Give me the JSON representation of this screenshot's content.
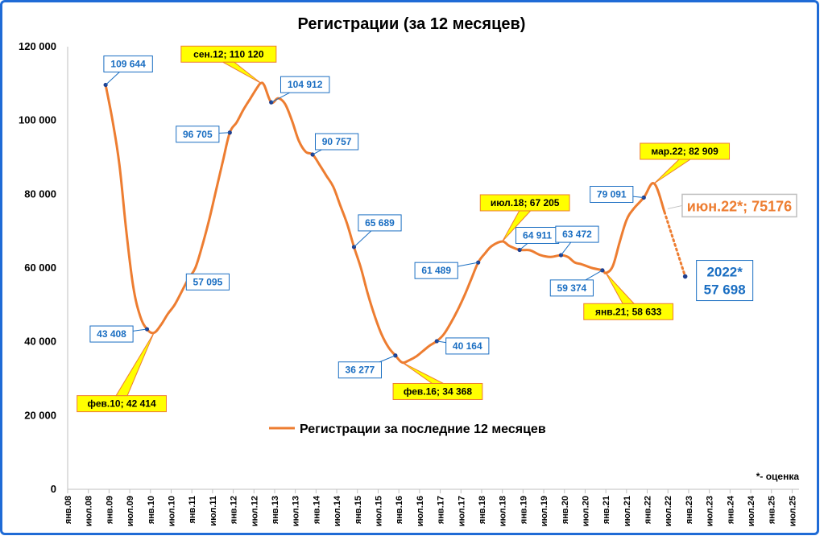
{
  "chart_data": {
    "type": "line",
    "title": "Регистрации (за 12 месяцев)",
    "ylim": [
      0,
      120000
    ],
    "xlim": [
      "2008-01",
      "2025-09"
    ],
    "yticks": [
      "0",
      "20 000",
      "40 000",
      "60 000",
      "80 000",
      "100 000",
      "120 000"
    ],
    "ytick_values": [
      0,
      20000,
      40000,
      60000,
      80000,
      100000,
      120000
    ],
    "xticks": [
      "янв.08",
      "июл.08",
      "янв.09",
      "июл.09",
      "янв.10",
      "июл.10",
      "янв.11",
      "июл.11",
      "янв.12",
      "июл.12",
      "янв.13",
      "июл.13",
      "янв.14",
      "июл.14",
      "янв.15",
      "июл.15",
      "янв.16",
      "июл.16",
      "янв.17",
      "июл.17",
      "янв.18",
      "июл.18",
      "янв.19",
      "июл.19",
      "янв.20",
      "июл.20",
      "янв.21",
      "июл.21",
      "янв.22",
      "июл.22",
      "янв.23",
      "июл.23",
      "янв.24",
      "июл.24",
      "янв.25",
      "июл.25"
    ],
    "xtick_dates": [
      "2008-01",
      "2008-07",
      "2009-01",
      "2009-07",
      "2010-01",
      "2010-07",
      "2011-01",
      "2011-07",
      "2012-01",
      "2012-07",
      "2013-01",
      "2013-07",
      "2014-01",
      "2014-07",
      "2015-01",
      "2015-07",
      "2016-01",
      "2016-07",
      "2017-01",
      "2017-07",
      "2018-01",
      "2018-07",
      "2019-01",
      "2019-07",
      "2020-01",
      "2020-07",
      "2021-01",
      "2021-07",
      "2022-01",
      "2022-07",
      "2023-01",
      "2023-07",
      "2024-01",
      "2024-07",
      "2025-01",
      "2025-07"
    ],
    "grid": false,
    "legend_position": "center",
    "series": [
      {
        "name": "Регистрации за последние 12 месяцев",
        "color": "#ed7d31",
        "points": [
          [
            "2008-12",
            109644
          ],
          [
            "2009-02",
            100000
          ],
          [
            "2009-04",
            88000
          ],
          [
            "2009-06",
            70000
          ],
          [
            "2009-08",
            55000
          ],
          [
            "2009-10",
            47000
          ],
          [
            "2009-12",
            43408
          ],
          [
            "2010-02",
            42414
          ],
          [
            "2010-04",
            44500
          ],
          [
            "2010-06",
            47500
          ],
          [
            "2010-08",
            50000
          ],
          [
            "2010-10",
            53500
          ],
          [
            "2010-12",
            57095
          ],
          [
            "2011-02",
            60000
          ],
          [
            "2011-04",
            66000
          ],
          [
            "2011-06",
            73000
          ],
          [
            "2011-08",
            81000
          ],
          [
            "2011-10",
            89000
          ],
          [
            "2011-12",
            96705
          ],
          [
            "2012-02",
            99500
          ],
          [
            "2012-04",
            103000
          ],
          [
            "2012-06",
            106000
          ],
          [
            "2012-08",
            109000
          ],
          [
            "2012-09",
            110120
          ],
          [
            "2012-10",
            109500
          ],
          [
            "2012-12",
            104912
          ],
          [
            "2013-02",
            106000
          ],
          [
            "2013-04",
            104500
          ],
          [
            "2013-06",
            100000
          ],
          [
            "2013-08",
            94500
          ],
          [
            "2013-10",
            91500
          ],
          [
            "2013-12",
            90757
          ],
          [
            "2014-02",
            88000
          ],
          [
            "2014-04",
            85000
          ],
          [
            "2014-06",
            82000
          ],
          [
            "2014-08",
            77000
          ],
          [
            "2014-10",
            72000
          ],
          [
            "2014-12",
            65689
          ],
          [
            "2015-02",
            60000
          ],
          [
            "2015-04",
            53000
          ],
          [
            "2015-06",
            47000
          ],
          [
            "2015-08",
            42000
          ],
          [
            "2015-10",
            38500
          ],
          [
            "2015-12",
            36277
          ],
          [
            "2016-02",
            34368
          ],
          [
            "2016-04",
            35000
          ],
          [
            "2016-06",
            36000
          ],
          [
            "2016-08",
            37500
          ],
          [
            "2016-10",
            39000
          ],
          [
            "2016-12",
            40164
          ],
          [
            "2017-02",
            42000
          ],
          [
            "2017-04",
            45000
          ],
          [
            "2017-06",
            48500
          ],
          [
            "2017-08",
            52500
          ],
          [
            "2017-10",
            57000
          ],
          [
            "2017-12",
            61489
          ],
          [
            "2018-02",
            64000
          ],
          [
            "2018-04",
            66000
          ],
          [
            "2018-07",
            67205
          ],
          [
            "2018-09",
            66000
          ],
          [
            "2018-12",
            64911
          ],
          [
            "2019-03",
            64800
          ],
          [
            "2019-06",
            63500
          ],
          [
            "2019-09",
            63000
          ],
          [
            "2019-12",
            63472
          ],
          [
            "2020-02",
            63000
          ],
          [
            "2020-04",
            61500
          ],
          [
            "2020-06",
            61000
          ],
          [
            "2020-09",
            60000
          ],
          [
            "2020-12",
            59374
          ],
          [
            "2021-01",
            58633
          ],
          [
            "2021-03",
            60500
          ],
          [
            "2021-05",
            67000
          ],
          [
            "2021-07",
            73000
          ],
          [
            "2021-09",
            76000
          ],
          [
            "2021-12",
            79091
          ],
          [
            "2022-03",
            82909
          ],
          [
            "2022-06",
            75176
          ]
        ]
      },
      {
        "name": "",
        "style": "dotted",
        "color": "#ed7d31",
        "points": [
          [
            "2022-06",
            75176
          ],
          [
            "2022-12",
            57698
          ]
        ]
      }
    ],
    "annotations_plain": [
      {
        "text": "109 644",
        "at": [
          "2008-12",
          109644
        ]
      },
      {
        "text": "43 408",
        "at": [
          "2009-12",
          43408
        ]
      },
      {
        "text": "57 095",
        "at": [
          "2010-12",
          57095
        ]
      },
      {
        "text": "96 705",
        "at": [
          "2011-12",
          96705
        ]
      },
      {
        "text": "104 912",
        "at": [
          "2012-12",
          104912
        ]
      },
      {
        "text": "90 757",
        "at": [
          "2013-12",
          90757
        ]
      },
      {
        "text": "65 689",
        "at": [
          "2014-12",
          65689
        ]
      },
      {
        "text": "36 277",
        "at": [
          "2015-12",
          36277
        ]
      },
      {
        "text": "40 164",
        "at": [
          "2016-12",
          40164
        ]
      },
      {
        "text": "61 489",
        "at": [
          "2017-12",
          61489
        ]
      },
      {
        "text": "64 911",
        "at": [
          "2018-12",
          64911
        ]
      },
      {
        "text": "63 472",
        "at": [
          "2019-12",
          63472
        ]
      },
      {
        "text": "59 374",
        "at": [
          "2020-12",
          59374
        ]
      },
      {
        "text": "79 091",
        "at": [
          "2021-12",
          79091
        ]
      }
    ],
    "annotations_highlight": [
      {
        "text": "фев.10; 42 414",
        "at": [
          "2010-02",
          42414
        ]
      },
      {
        "text": "сен.12; 110 120",
        "at": [
          "2012-09",
          110120
        ]
      },
      {
        "text": "фев.16; 34 368",
        "at": [
          "2016-02",
          34368
        ]
      },
      {
        "text": "июл.18; 67 205",
        "at": [
          "2018-07",
          67205
        ]
      },
      {
        "text": "янв.21; 58 633",
        "at": [
          "2021-01",
          58633
        ]
      },
      {
        "text": "мар.22; 82 909",
        "at": [
          "2022-03",
          82909
        ]
      }
    ],
    "estimate_label": "июн.22*; 75176",
    "forecast_label_year": "2022*",
    "forecast_label_value": "57 698",
    "footnote": "*- оценка",
    "colors": {
      "line": "#ed7d31",
      "label_text": "#1a6ec2",
      "label_border": "#1a6ec2",
      "highlight_fill": "#ffff00",
      "highlight_border": "#ed7d31",
      "point": "#1f3f8f"
    }
  }
}
